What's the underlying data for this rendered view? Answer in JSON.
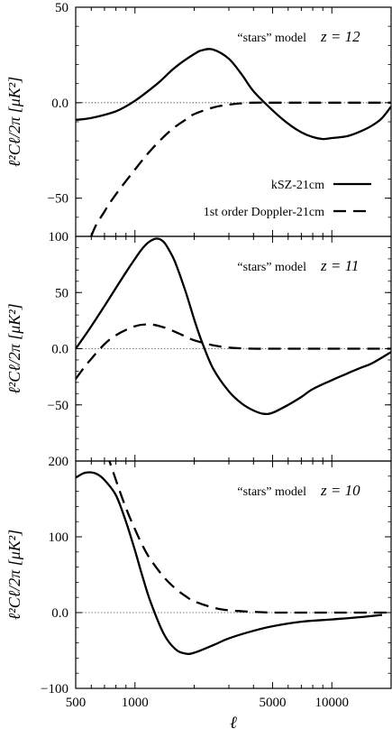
{
  "chart_data": [
    {
      "type": "line",
      "ylabel": "ℓ²Cℓ/2π  [μK²]",
      "ylim": [
        -70,
        50
      ],
      "yticks": [
        50,
        0,
        -50
      ],
      "yticklabels": [
        "50",
        "0.0",
        "−50"
      ],
      "xlim": [
        500,
        20000
      ],
      "xscale": "log",
      "zero_line": true,
      "annotation": {
        "model": "“stars” model",
        "z": "z = 12"
      },
      "legend_position": "lower-right",
      "series": [
        {
          "name": "kSZ-21cm",
          "style": "solid",
          "x": [
            500,
            600,
            800,
            1000,
            1300,
            1600,
            2000,
            2200,
            2500,
            3000,
            3500,
            4000,
            5000,
            6000,
            7000,
            8000,
            9000,
            10000,
            12000,
            14000,
            16000,
            18000,
            20000
          ],
          "y": [
            -9,
            -8,
            -4.5,
            1,
            10,
            18.5,
            25.5,
            27.5,
            27.8,
            23,
            14.5,
            6,
            -4,
            -11,
            -15.5,
            -18,
            -19,
            -18.5,
            -17.5,
            -15,
            -12,
            -8,
            -2
          ]
        },
        {
          "name": "1st order Doppler-21cm",
          "style": "dashed",
          "x": [
            500,
            600,
            700,
            800,
            1000,
            1200,
            1500,
            1800,
            2000,
            2500,
            3000,
            3500,
            4000,
            5000,
            7000,
            10000,
            20000
          ],
          "y": [
            -100,
            -70,
            -57,
            -48,
            -35,
            -25,
            -15,
            -9,
            -6,
            -2.5,
            -1,
            -0.3,
            0,
            0,
            0,
            0,
            0
          ]
        }
      ]
    },
    {
      "type": "line",
      "ylabel": "ℓ²Cℓ/2π  [μK²]",
      "ylim": [
        -100,
        100
      ],
      "yticks": [
        100,
        50,
        0,
        -50
      ],
      "yticklabels": [
        "100",
        "50",
        "0.0",
        "−50"
      ],
      "xlim": [
        500,
        20000
      ],
      "xscale": "log",
      "zero_line": true,
      "annotation": {
        "model": "“stars” model",
        "z": "z = 11"
      },
      "series": [
        {
          "name": "kSZ-21cm",
          "style": "solid",
          "x": [
            500,
            600,
            700,
            800,
            900,
            1000,
            1100,
            1200,
            1300,
            1400,
            1500,
            1600,
            1800,
            2000,
            2200,
            2500,
            3000,
            3500,
            4000,
            4500,
            5000,
            6000,
            7000,
            8000,
            10000,
            12000,
            14000,
            16000,
            20000
          ],
          "y": [
            0,
            20,
            38,
            54,
            68,
            80,
            90,
            96,
            98,
            95,
            87,
            77,
            52,
            26,
            5,
            -18,
            -38,
            -49,
            -55,
            -58,
            -57,
            -50,
            -43,
            -36,
            -28,
            -22,
            -17,
            -13,
            -3
          ]
        },
        {
          "name": "1st order Doppler-21cm",
          "style": "dashed",
          "x": [
            500,
            550,
            600,
            700,
            800,
            1000,
            1200,
            1400,
            1600,
            1800,
            2000,
            2500,
            3000,
            3500,
            4000,
            5000,
            7000,
            10000,
            20000
          ],
          "y": [
            -27,
            -17,
            -9,
            4,
            12,
            20,
            21.5,
            19,
            15,
            11,
            7.5,
            3,
            1,
            0.3,
            0,
            0,
            0,
            0,
            0
          ]
        }
      ]
    },
    {
      "type": "line",
      "ylabel": "ℓ²Cℓ/2π  [μK²]",
      "ylim": [
        -100,
        200
      ],
      "yticks": [
        200,
        100,
        0,
        -100
      ],
      "yticklabels": [
        "200",
        "100",
        "0.0",
        "−100"
      ],
      "xlim": [
        500,
        20000
      ],
      "xscale": "log",
      "xticks": [
        500,
        1000,
        5000,
        10000
      ],
      "xticklabels": [
        "500",
        "1000",
        "5000",
        "10000"
      ],
      "xlabel": "ℓ",
      "zero_line": true,
      "annotation": {
        "model": "“stars” model",
        "z": "z = 10"
      },
      "series": [
        {
          "name": "kSZ-21cm",
          "style": "solid",
          "x": [
            500,
            550,
            600,
            650,
            700,
            800,
            900,
            1000,
            1100,
            1200,
            1400,
            1600,
            1800,
            2000,
            2500,
            3000,
            4000,
            5000,
            7000,
            10000,
            14000,
            18000
          ],
          "y": [
            178,
            184,
            185,
            182,
            175,
            155,
            120,
            82,
            45,
            14,
            -28,
            -48,
            -54,
            -53,
            -43,
            -34,
            -24,
            -18,
            -12,
            -9,
            -6,
            -3
          ]
        },
        {
          "name": "1st order Doppler-21cm",
          "style": "dashed",
          "x": [
            720,
            800,
            900,
            1000,
            1100,
            1200,
            1400,
            1600,
            1800,
            2000,
            2500,
            3000,
            4000,
            5000,
            7000,
            10000,
            20000
          ],
          "y": [
            210,
            175,
            138,
            110,
            87,
            70,
            47,
            32,
            22,
            15,
            6.5,
            3,
            1,
            0,
            0,
            0,
            0
          ]
        }
      ]
    }
  ],
  "legend": {
    "entries": [
      {
        "label": "kSZ-21cm",
        "style": "solid"
      },
      {
        "label": "1st order Doppler-21cm",
        "style": "dashed"
      }
    ]
  }
}
